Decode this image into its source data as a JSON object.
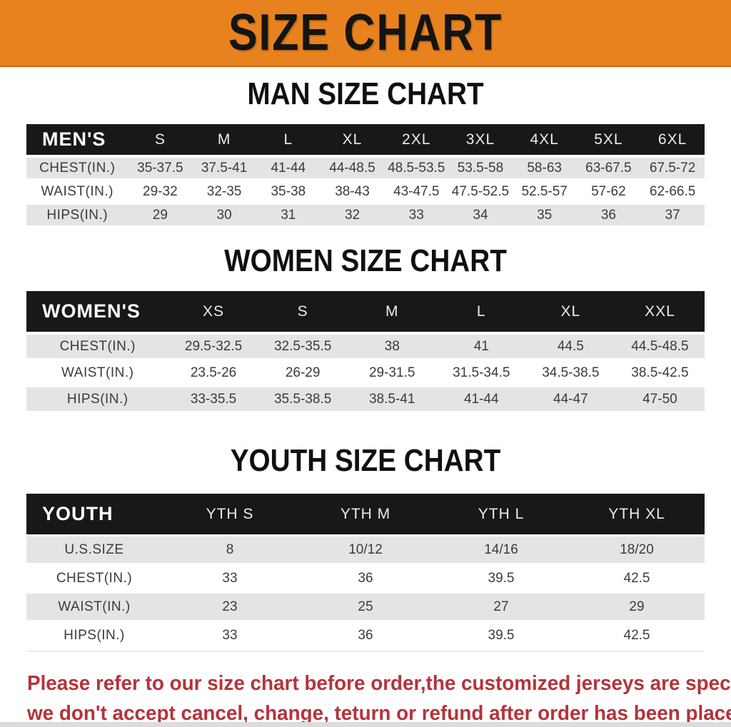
{
  "banner": {
    "title": "SIZE CHART",
    "bg_color": "#E8821E"
  },
  "colors": {
    "banner_orange": "#E8821E",
    "table_header_black": "#181818",
    "row_gray": "#E4E4E4",
    "cell_text": "#3B3B3B",
    "footer_red": "#B5333A"
  },
  "sections": [
    {
      "heading": "MAN SIZE CHART",
      "table": {
        "label": "MEN'S",
        "columns": [
          "S",
          "M",
          "L",
          "XL",
          "2XL",
          "3XL",
          "4XL",
          "5XL",
          "6XL"
        ],
        "rows": [
          {
            "label": "CHEST(IN.)",
            "values": [
              "35-37.5",
              "37.5-41",
              "41-44",
              "44-48.5",
              "48.5-53.5",
              "53.5-58",
              "58-63",
              "63-67.5",
              "67.5-72"
            ]
          },
          {
            "label": "WAIST(IN.)",
            "values": [
              "29-32",
              "32-35",
              "35-38",
              "38-43",
              "43-47.5",
              "47.5-52.5",
              "52.5-57",
              "57-62",
              "62-66.5"
            ]
          },
          {
            "label": "HIPS(IN.)",
            "values": [
              "29",
              "30",
              "31",
              "32",
              "33",
              "34",
              "35",
              "36",
              "37"
            ]
          }
        ]
      }
    },
    {
      "heading": "WOMEN SIZE CHART",
      "table": {
        "label": "WOMEN'S",
        "columns": [
          "XS",
          "S",
          "M",
          "L",
          "XL",
          "XXL"
        ],
        "rows": [
          {
            "label": "CHEST(IN.)",
            "values": [
              "29.5-32.5",
              "32.5-35.5",
              "38",
              "41",
              "44.5",
              "44.5-48.5"
            ]
          },
          {
            "label": "WAIST(IN.)",
            "values": [
              "23.5-26",
              "26-29",
              "29-31.5",
              "31.5-34.5",
              "34.5-38.5",
              "38.5-42.5"
            ]
          },
          {
            "label": "HIPS(IN.)",
            "values": [
              "33-35.5",
              "35.5-38.5",
              "38.5-41",
              "41-44",
              "44-47",
              "47-50"
            ]
          }
        ]
      }
    },
    {
      "heading": "YOUTH SIZE CHART",
      "table": {
        "label": "YOUTH",
        "columns": [
          "YTH S",
          "YTH M",
          "YTH L",
          "YTH XL"
        ],
        "rows": [
          {
            "label": "U.S.SIZE",
            "values": [
              "8",
              "10/12",
              "14/16",
              "18/20"
            ]
          },
          {
            "label": "CHEST(IN.)",
            "values": [
              "33",
              "36",
              "39.5",
              "42.5"
            ]
          },
          {
            "label": "WAIST(IN.)",
            "values": [
              "23",
              "25",
              "27",
              "29"
            ]
          },
          {
            "label": "HIPS(IN.)",
            "values": [
              "33",
              "36",
              "39.5",
              "42.5"
            ]
          }
        ]
      }
    }
  ],
  "footer": {
    "line1": "Please refer to our size chart before order,the customized jerseys are special products,",
    "line2": "we don't accept cancel, change, teturn or refund after order has been placed!"
  }
}
